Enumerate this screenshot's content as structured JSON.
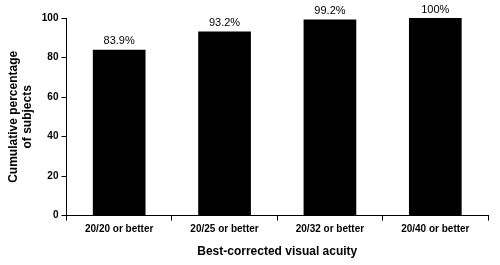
{
  "chart_data": {
    "type": "bar",
    "categories": [
      "20/20 or better",
      "20/25 or better",
      "20/32 or better",
      "20/40 or better"
    ],
    "values": [
      83.9,
      93.2,
      99.2,
      100
    ],
    "value_labels": [
      "83.9%",
      "93.2%",
      "99.2%",
      "100%"
    ],
    "color": "#000000",
    "xlabel": "Best-corrected visual acuity",
    "ylabel": [
      "Cumulative percentage",
      "of subjects"
    ],
    "ylim": [
      0,
      100
    ],
    "yticks": [
      0,
      20,
      40,
      60,
      80,
      100
    ],
    "grid": false,
    "data_labels": true
  }
}
